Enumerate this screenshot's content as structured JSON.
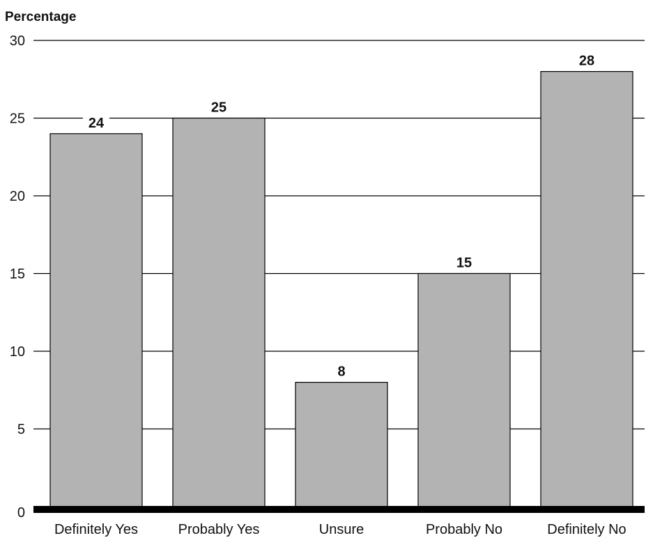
{
  "chart_data": {
    "type": "bar",
    "title": "",
    "xlabel": "",
    "ylabel": "Percentage",
    "ylim": [
      0,
      30
    ],
    "yticks": [
      0,
      5,
      10,
      15,
      20,
      25,
      30
    ],
    "grid": true,
    "categories": [
      "Definitely Yes",
      "Probably Yes",
      "Unsure",
      "Probably No",
      "Definitely No"
    ],
    "values": [
      24,
      25,
      8,
      15,
      28
    ],
    "data_labels": [
      "24",
      "25",
      "8",
      "15",
      "28"
    ],
    "colors": {
      "bar": "#b3b3b3",
      "bar_stroke": "#000000",
      "grid": "#000000",
      "baseline": "#000000"
    }
  }
}
